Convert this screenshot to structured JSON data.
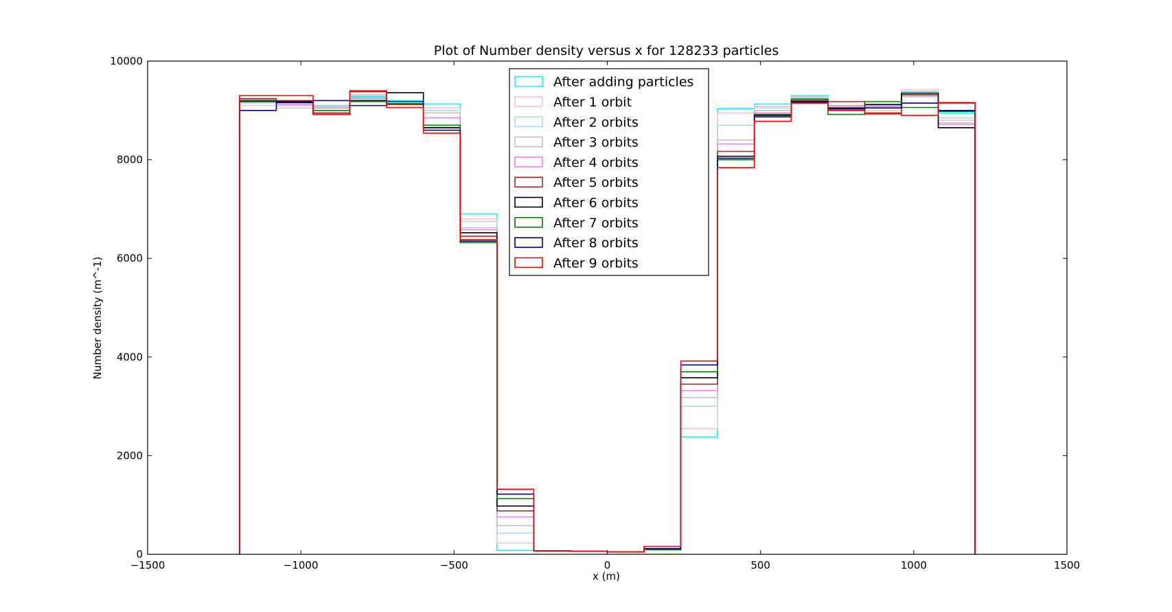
{
  "chart_data": {
    "type": "step",
    "title": "Plot of Number density versus x for 128233 particles",
    "xlabel": "x (m)",
    "ylabel": "Number density (m^-1)",
    "xlim": [
      -1500,
      1500
    ],
    "ylim": [
      0,
      10000
    ],
    "xticks": [
      -1500,
      -1000,
      -500,
      0,
      500,
      1000,
      1500
    ],
    "xtick_labels": [
      "−1500",
      "−1000",
      "−500",
      "0",
      "500",
      "1000",
      "1500"
    ],
    "yticks": [
      0,
      2000,
      4000,
      6000,
      8000,
      10000
    ],
    "ytick_labels": [
      "0",
      "2000",
      "4000",
      "6000",
      "8000",
      "10000"
    ],
    "legend_position": "top-center",
    "bin_edges": [
      -1200,
      -1080,
      -960,
      -840,
      -720,
      -600,
      -480,
      -360,
      -240,
      -120,
      0,
      120,
      240,
      360,
      480,
      600,
      720,
      840,
      960,
      1080,
      1200
    ],
    "series": [
      {
        "name": "After adding particles",
        "color": "#00ffff",
        "values": [
          9200,
          9100,
          9100,
          9280,
          9200,
          9130,
          6900,
          80,
          70,
          60,
          50,
          80,
          2380,
          9040,
          9130,
          9300,
          9000,
          9100,
          9380,
          8950
        ]
      },
      {
        "name": "After 1 orbit",
        "color": "#ffc0cb",
        "values": [
          9100,
          9050,
          9050,
          9320,
          9180,
          9050,
          6800,
          230,
          70,
          60,
          50,
          90,
          2550,
          8950,
          9080,
          9280,
          9020,
          9000,
          9420,
          8800
        ]
      },
      {
        "name": "After 2 orbits",
        "color": "#add8e6",
        "values": [
          9150,
          9100,
          9080,
          9300,
          9150,
          9000,
          6750,
          430,
          70,
          60,
          50,
          90,
          3000,
          8700,
          9050,
          9260,
          9050,
          9050,
          9300,
          8850
        ]
      },
      {
        "name": "After 3 orbits",
        "color": "#c0c0c0",
        "values": [
          9180,
          9150,
          9100,
          9260,
          9180,
          8950,
          6620,
          580,
          70,
          60,
          50,
          100,
          3180,
          8400,
          9000,
          9240,
          9080,
          9100,
          9280,
          8750
        ]
      },
      {
        "name": "After 4 orbits",
        "color": "#ee82ee",
        "values": [
          9220,
          9120,
          9050,
          9240,
          9140,
          8850,
          6580,
          760,
          70,
          60,
          50,
          110,
          3320,
          8320,
          8950,
          9220,
          9100,
          9080,
          9320,
          8720
        ]
      },
      {
        "name": "After 5 orbits",
        "color": "#a52a2a",
        "values": [
          9240,
          9200,
          8950,
          9380,
          9120,
          8650,
          6450,
          880,
          70,
          60,
          50,
          120,
          3450,
          8170,
          8900,
          9200,
          9180,
          8950,
          9320,
          9150
        ]
      },
      {
        "name": "After 6 orbits",
        "color": "#000000",
        "values": [
          9180,
          9160,
          8920,
          9200,
          9360,
          8650,
          6520,
          980,
          70,
          60,
          50,
          100,
          3580,
          8070,
          8870,
          9160,
          9050,
          9120,
          9350,
          8650
        ]
      },
      {
        "name": "After 7 orbits",
        "color": "#008000",
        "values": [
          9200,
          9180,
          9000,
          9180,
          9140,
          8700,
          6320,
          1130,
          70,
          60,
          50,
          100,
          3700,
          8000,
          8920,
          9230,
          8920,
          9180,
          9060,
          8980
        ]
      },
      {
        "name": "After 8 orbits",
        "color": "#00008b",
        "values": [
          9000,
          9180,
          9200,
          9100,
          9180,
          8600,
          6350,
          1220,
          70,
          60,
          50,
          110,
          3840,
          8030,
          8900,
          9180,
          9030,
          9050,
          9150,
          9000
        ]
      },
      {
        "name": "After 9 orbits",
        "color": "#ff0000",
        "values": [
          9300,
          9300,
          8920,
          9400,
          9060,
          8540,
          6380,
          1320,
          70,
          60,
          50,
          160,
          3920,
          7840,
          8780,
          9150,
          9000,
          8930,
          8900,
          9160
        ]
      }
    ]
  }
}
